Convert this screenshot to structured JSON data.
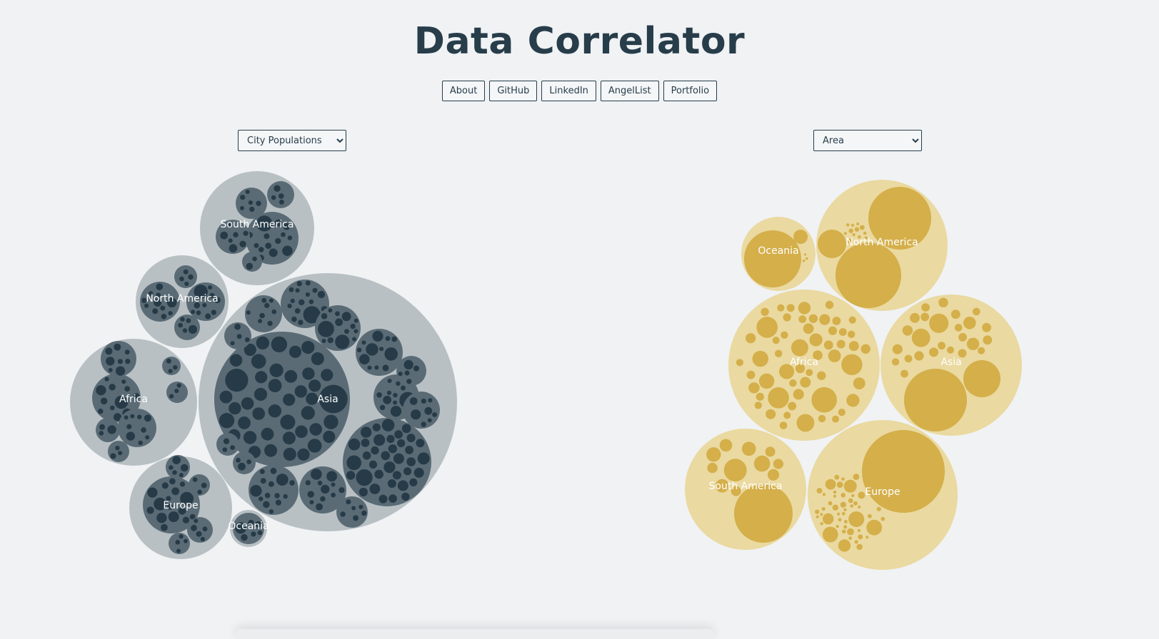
{
  "header": {
    "title": "Data Correlator"
  },
  "nav": [
    {
      "label": "About"
    },
    {
      "label": "GitHub"
    },
    {
      "label": "LinkedIn"
    },
    {
      "label": "AngelList"
    },
    {
      "label": "Portfolio"
    }
  ],
  "selectors": {
    "left": {
      "selected": "City Populations"
    },
    "right": {
      "selected": "Area"
    }
  },
  "chart_data": [
    {
      "type": "circle-packing",
      "title": "City Populations",
      "palette": {
        "outer": "#b8c0c4",
        "inner": "#5a6b75",
        "leaf": "#263b47",
        "label": "#ffffff"
      },
      "groups": [
        {
          "name": "Asia",
          "relative_size": 1.0
        },
        {
          "name": "Africa",
          "relative_size": 0.25
        },
        {
          "name": "Europe",
          "relative_size": 0.16
        },
        {
          "name": "North America",
          "relative_size": 0.13
        },
        {
          "name": "South America",
          "relative_size": 0.2
        },
        {
          "name": "Oceania",
          "relative_size": 0.02
        }
      ]
    },
    {
      "type": "circle-packing",
      "title": "Area",
      "palette": {
        "outer": "#ead9a0",
        "leaf": "#d4af4a",
        "label": "#ffffff"
      },
      "groups": [
        {
          "name": "Asia",
          "relative_size": 0.87
        },
        {
          "name": "Africa",
          "relative_size": 1.0
        },
        {
          "name": "Europe",
          "relative_size": 1.0
        },
        {
          "name": "North America",
          "relative_size": 0.77
        },
        {
          "name": "South America",
          "relative_size": 0.64
        },
        {
          "name": "Oceania",
          "relative_size": 0.25
        }
      ]
    }
  ]
}
